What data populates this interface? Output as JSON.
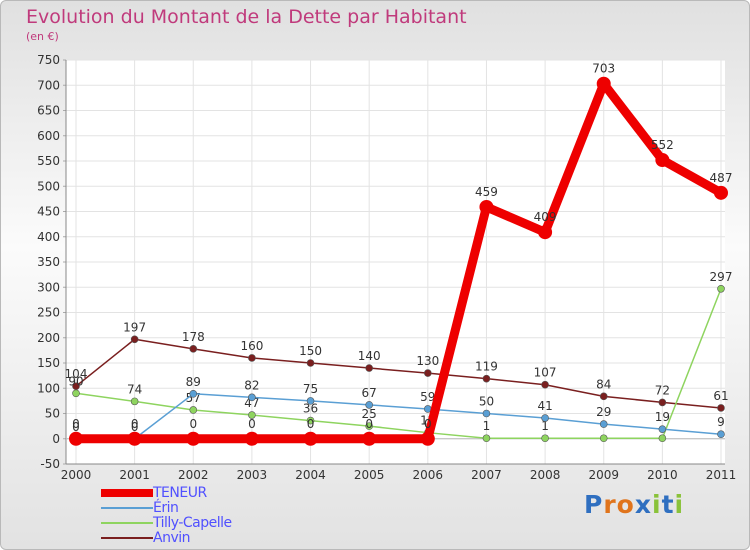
{
  "title": "Evolution du Montant de la Dette par Habitant",
  "subtitle": "(en €)",
  "logo_text": "Proxiti",
  "chart_data": {
    "type": "line",
    "x": [
      "2000",
      "2001",
      "2002",
      "2003",
      "2004",
      "2005",
      "2006",
      "2007",
      "2008",
      "2009",
      "2010",
      "2011"
    ],
    "ylim": [
      -50,
      750
    ],
    "yticks": [
      -50,
      0,
      50,
      100,
      150,
      200,
      250,
      300,
      350,
      400,
      450,
      500,
      550,
      600,
      650,
      700,
      750
    ],
    "grid": true,
    "legend_position": "bottom-left",
    "series": [
      {
        "name": "Anvin",
        "color": "#7a1f1f",
        "values": [
          104,
          197,
          178,
          160,
          150,
          140,
          130,
          119,
          107,
          84,
          72,
          61
        ],
        "labels": [
          "104",
          "197",
          "178",
          "160",
          "150",
          "140",
          "130",
          "119",
          "107",
          "84",
          "72",
          "61"
        ]
      },
      {
        "name": "Tilly-Capelle",
        "color": "#8ed45f",
        "values": [
          90,
          74,
          57,
          47,
          36,
          25,
          12,
          1,
          1,
          1,
          1,
          297
        ],
        "labels": [
          "90",
          "74",
          "57",
          "47",
          "36",
          "25",
          "12",
          "1",
          "1",
          "",
          "",
          "297"
        ]
      },
      {
        "name": "Érin",
        "color": "#5a9fd4",
        "values": [
          0,
          0,
          89,
          82,
          75,
          67,
          59,
          50,
          41,
          29,
          19,
          9
        ],
        "labels": [
          "0",
          "0",
          "89",
          "82",
          "75",
          "67",
          "59",
          "50",
          "41",
          "29",
          "19",
          "9"
        ]
      },
      {
        "name": "TENEUR",
        "color": "#ee0000",
        "values": [
          0,
          0,
          0,
          0,
          0,
          0,
          0,
          459,
          409,
          703,
          552,
          487
        ],
        "labels": [
          "0",
          "0",
          "0",
          "0",
          "0",
          "0",
          "0",
          "459",
          "409",
          "703",
          "552",
          "487"
        ]
      }
    ],
    "legend_order": [
      "TENEUR",
      "Érin",
      "Tilly-Capelle",
      "Anvin"
    ]
  }
}
